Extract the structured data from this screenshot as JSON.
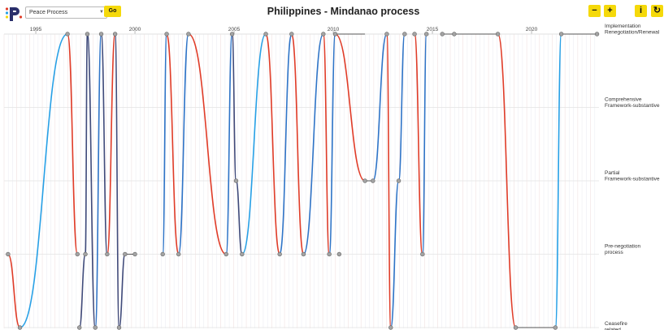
{
  "header": {
    "select_value": "Peace Process",
    "go_label": "Go",
    "title": "Philippines - Mindanao process",
    "zoom_out_label": "−",
    "zoom_in_label": "+",
    "info_label": "i",
    "refresh_label": "↻"
  },
  "colors": {
    "red_series": "#e03c28",
    "blue_series": "#2f74c7",
    "lightblue_series": "#27a0e6",
    "navy_series": "#3f4a7a",
    "marker_fill": "#a3a3a3",
    "marker_stroke": "#666666",
    "button_yellow": "#f5d90a"
  },
  "chart_data": {
    "type": "line",
    "title": "Philippines - Mindanao process",
    "x_ticks": [
      "1995",
      "2000",
      "2005",
      "2010",
      "2015",
      "2020"
    ],
    "xlim": [
      1993.4,
      2023.4
    ],
    "stages": [
      "Ceasefire related",
      "Pre-negotiation process",
      "Partial Framework-substantive",
      "Comprehensive Framework-substantive",
      "Implementation Renegotiation/Renewal"
    ],
    "stage_labels": [
      [
        "Ceasefire",
        "related"
      ],
      [
        "Pre-negotiation",
        "process"
      ],
      [
        "Partial",
        "Framework-substantive"
      ],
      [
        "Comprehensive",
        "Framework-substantive"
      ],
      [
        "Implementation",
        "Renegotiation/Renewal"
      ]
    ],
    "agreement_stages": [
      [
        1993.6,
        1
      ],
      [
        1994.2,
        0
      ],
      [
        1996.6,
        4
      ],
      [
        1997.1,
        1
      ],
      [
        1997.2,
        0
      ],
      [
        1997.5,
        1
      ],
      [
        1997.6,
        4
      ],
      [
        1998.0,
        0
      ],
      [
        1998.3,
        4
      ],
      [
        1998.6,
        1
      ],
      [
        1999.0,
        4
      ],
      [
        1999.2,
        0
      ],
      [
        1999.5,
        1
      ],
      [
        2000.0,
        1
      ],
      [
        2001.4,
        1
      ],
      [
        2001.6,
        4
      ],
      [
        2002.2,
        1
      ],
      [
        2002.7,
        4
      ],
      [
        2004.6,
        1
      ],
      [
        2004.9,
        4
      ],
      [
        2005.1,
        2
      ],
      [
        2005.4,
        1
      ],
      [
        2006.6,
        4
      ],
      [
        2007.3,
        1
      ],
      [
        2007.9,
        4
      ],
      [
        2008.5,
        1
      ],
      [
        2009.5,
        4
      ],
      [
        2009.8,
        1
      ],
      [
        2010.1,
        4
      ],
      [
        2010.3,
        1
      ],
      [
        2011.6,
        2
      ],
      [
        2012.0,
        2
      ],
      [
        2012.7,
        4
      ],
      [
        2012.9,
        0
      ],
      [
        2013.3,
        2
      ],
      [
        2013.6,
        4
      ],
      [
        2014.1,
        4
      ],
      [
        2014.5,
        1
      ],
      [
        2014.7,
        4
      ],
      [
        2015.5,
        4
      ],
      [
        2016.1,
        4
      ],
      [
        2018.3,
        4
      ],
      [
        2019.2,
        0
      ],
      [
        2021.2,
        0
      ],
      [
        2021.5,
        4
      ],
      [
        2023.3,
        4
      ]
    ],
    "series": [
      {
        "color_key": "red_series",
        "points": [
          [
            1993.6,
            1
          ],
          [
            1994.2,
            0
          ]
        ]
      },
      {
        "color_key": "lightblue_series",
        "points": [
          [
            1994.2,
            0
          ],
          [
            1996.6,
            4
          ]
        ]
      },
      {
        "color_key": "red_series",
        "points": [
          [
            1996.6,
            4
          ],
          [
            1997.1,
            1
          ]
        ]
      },
      {
        "color_key": "navy_series",
        "points": [
          [
            1997.2,
            0
          ],
          [
            1997.5,
            1
          ],
          [
            1997.6,
            4
          ],
          [
            1998.0,
            0
          ]
        ]
      },
      {
        "color_key": "blue_series",
        "points": [
          [
            1998.0,
            0
          ],
          [
            1998.3,
            4
          ]
        ]
      },
      {
        "color_key": "navy_series",
        "points": [
          [
            1998.3,
            4
          ],
          [
            1998.6,
            1
          ]
        ]
      },
      {
        "color_key": "red_series",
        "points": [
          [
            1998.6,
            1
          ],
          [
            1999.0,
            4
          ]
        ]
      },
      {
        "color_key": "navy_series",
        "points": [
          [
            1999.0,
            4
          ],
          [
            1999.2,
            0
          ],
          [
            1999.5,
            1
          ]
        ]
      },
      {
        "color_key": "blue_series",
        "points": [
          [
            2001.4,
            1
          ],
          [
            2001.6,
            4
          ]
        ]
      },
      {
        "color_key": "red_series",
        "points": [
          [
            2001.6,
            4
          ],
          [
            2002.2,
            1
          ]
        ]
      },
      {
        "color_key": "blue_series",
        "points": [
          [
            2002.2,
            1
          ],
          [
            2002.7,
            4
          ]
        ]
      },
      {
        "color_key": "red_series",
        "points": [
          [
            2002.7,
            4
          ],
          [
            2004.6,
            1
          ]
        ]
      },
      {
        "color_key": "blue_series",
        "points": [
          [
            2004.6,
            1
          ],
          [
            2004.9,
            4
          ]
        ]
      },
      {
        "color_key": "navy_series",
        "points": [
          [
            2004.9,
            4
          ],
          [
            2005.1,
            2
          ],
          [
            2005.4,
            1
          ]
        ]
      },
      {
        "color_key": "lightblue_series",
        "points": [
          [
            2005.4,
            1
          ],
          [
            2006.6,
            4
          ]
        ]
      },
      {
        "color_key": "red_series",
        "points": [
          [
            2006.6,
            4
          ],
          [
            2007.3,
            1
          ]
        ]
      },
      {
        "color_key": "blue_series",
        "points": [
          [
            2007.3,
            1
          ],
          [
            2007.9,
            4
          ]
        ]
      },
      {
        "color_key": "red_series",
        "points": [
          [
            2007.9,
            4
          ],
          [
            2008.5,
            1
          ]
        ]
      },
      {
        "color_key": "blue_series",
        "points": [
          [
            2008.5,
            1
          ],
          [
            2009.5,
            4
          ]
        ]
      },
      {
        "color_key": "red_series",
        "points": [
          [
            2009.5,
            4
          ],
          [
            2009.8,
            1
          ]
        ]
      },
      {
        "color_key": "blue_series",
        "points": [
          [
            2009.8,
            1
          ],
          [
            2010.1,
            4
          ]
        ]
      },
      {
        "color_key": "red_series",
        "points": [
          [
            2010.1,
            4
          ],
          [
            2011.6,
            2
          ]
        ]
      },
      {
        "color_key": "blue_series",
        "points": [
          [
            2012.0,
            2
          ],
          [
            2012.7,
            4
          ]
        ]
      },
      {
        "color_key": "red_series",
        "points": [
          [
            2012.7,
            4
          ],
          [
            2012.9,
            0
          ]
        ]
      },
      {
        "color_key": "blue_series",
        "points": [
          [
            2012.9,
            0
          ],
          [
            2013.3,
            2
          ],
          [
            2013.6,
            4
          ]
        ]
      },
      {
        "color_key": "red_series",
        "points": [
          [
            2014.1,
            4
          ],
          [
            2014.5,
            1
          ]
        ]
      },
      {
        "color_key": "blue_series",
        "points": [
          [
            2014.5,
            1
          ],
          [
            2014.7,
            4
          ]
        ]
      },
      {
        "color_key": "red_series",
        "points": [
          [
            2018.3,
            4
          ],
          [
            2019.2,
            0
          ]
        ]
      },
      {
        "color_key": "lightblue_series",
        "points": [
          [
            2021.2,
            0
          ],
          [
            2021.5,
            4
          ]
        ]
      }
    ],
    "grid": true,
    "legend": "none"
  }
}
